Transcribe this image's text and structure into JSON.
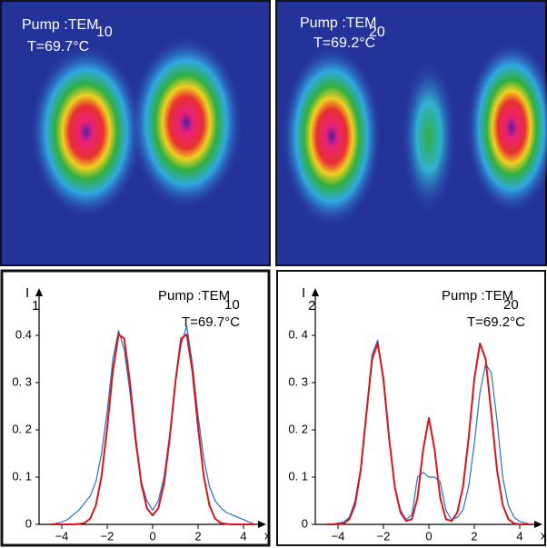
{
  "images": [
    {
      "label": "Pump :TEM",
      "subscript": "10",
      "temperature": "T=69.7°C"
    },
    {
      "label": "Pump :TEM",
      "subscript": "20",
      "temperature": "T=69.2°C"
    }
  ],
  "chart_data": [
    {
      "type": "line",
      "y_label": "I",
      "y_label_subscript": "1",
      "x_label": "x",
      "annotation": "Pump :TEM",
      "annotation_subscript": "10",
      "annotation_temperature": "T=69.7°C",
      "x": [
        -4.5,
        -4.25,
        -4,
        -3.75,
        -3.5,
        -3.25,
        -3,
        -2.75,
        -2.5,
        -2.25,
        -2,
        -1.75,
        -1.5,
        -1.25,
        -1,
        -0.75,
        -0.5,
        -0.25,
        0,
        0.25,
        0.5,
        0.75,
        1,
        1.25,
        1.5,
        1.75,
        2,
        2.25,
        2.5,
        2.75,
        3,
        3.25,
        3.5,
        3.75,
        4,
        4.25,
        4.5
      ],
      "xlim": [
        -5,
        5
      ],
      "ylim": [
        0,
        0.5
      ],
      "xticks": [
        {
          "value": -4,
          "label": "−4"
        },
        {
          "value": -2,
          "label": "−2"
        },
        0,
        2,
        4
      ],
      "yticks": [
        0,
        {
          "value": 0.1,
          "label": "0. 1"
        },
        {
          "value": 0.2,
          "label": "0. 2"
        },
        {
          "value": 0.3,
          "label": "0. 3"
        },
        0.4
      ],
      "series": [
        {
          "color": "#2a6fc0",
          "values": [
            0,
            0.002,
            0.005,
            0.01,
            0.02,
            0.03,
            0.045,
            0.06,
            0.09,
            0.15,
            0.24,
            0.35,
            0.41,
            0.37,
            0.28,
            0.17,
            0.09,
            0.05,
            0.03,
            0.05,
            0.1,
            0.19,
            0.3,
            0.38,
            0.42,
            0.34,
            0.23,
            0.14,
            0.08,
            0.05,
            0.035,
            0.025,
            0.02,
            0.015,
            0.01,
            0.005,
            0
          ]
        },
        {
          "color": "#d8141c",
          "values": [
            0,
            0,
            0,
            0,
            0,
            0.001,
            0.003,
            0.012,
            0.04,
            0.102,
            0.205,
            0.324,
            0.402,
            0.393,
            0.301,
            0.182,
            0.086,
            0.034,
            0.019,
            0.034,
            0.086,
            0.182,
            0.301,
            0.393,
            0.402,
            0.324,
            0.205,
            0.102,
            0.04,
            0.012,
            0.003,
            0.001,
            0,
            0,
            0,
            0,
            0
          ]
        }
      ]
    },
    {
      "type": "line",
      "y_label": "I",
      "y_label_subscript": "2",
      "x_label": "x",
      "annotation": "Pump :TEM",
      "annotation_subscript": "20",
      "annotation_temperature": "T=69.2°C",
      "x": [
        -4.5,
        -4.25,
        -4,
        -3.75,
        -3.5,
        -3.25,
        -3,
        -2.75,
        -2.5,
        -2.25,
        -2,
        -1.75,
        -1.5,
        -1.25,
        -1,
        -0.75,
        -0.5,
        -0.25,
        0,
        0.25,
        0.5,
        0.75,
        1,
        1.25,
        1.5,
        1.75,
        2,
        2.25,
        2.5,
        2.75,
        3,
        3.25,
        3.5,
        3.75,
        4,
        4.25,
        4.5
      ],
      "xlim": [
        -5,
        5
      ],
      "ylim": [
        0,
        0.5
      ],
      "xticks": [
        {
          "value": -4,
          "label": "−4"
        },
        {
          "value": -2,
          "label": "−2"
        },
        0,
        2,
        4
      ],
      "yticks": [
        0,
        {
          "value": 0.1,
          "label": "0. 1"
        },
        {
          "value": 0.2,
          "label": "0. 2"
        },
        {
          "value": 0.3,
          "label": "0. 3"
        },
        {
          "value": 0.4,
          "label": "0. 4"
        }
      ],
      "series": [
        {
          "color": "#2a6fc0",
          "values": [
            0,
            0,
            0.003,
            0.005,
            0.015,
            0.05,
            0.12,
            0.24,
            0.36,
            0.39,
            0.3,
            0.18,
            0.08,
            0.03,
            0.01,
            0.02,
            0.1,
            0.11,
            0.1,
            0.1,
            0.09,
            0.03,
            0.01,
            0.015,
            0.03,
            0.08,
            0.17,
            0.28,
            0.34,
            0.32,
            0.22,
            0.1,
            0.04,
            0.015,
            0.006,
            0.003,
            0
          ]
        },
        {
          "color": "#d8141c",
          "values": [
            0,
            0,
            0,
            0.002,
            0.011,
            0.041,
            0.115,
            0.234,
            0.349,
            0.383,
            0.308,
            0.182,
            0.079,
            0.025,
            0.007,
            0.011,
            0.056,
            0.159,
            0.225,
            0.159,
            0.056,
            0.011,
            0.007,
            0.025,
            0.079,
            0.182,
            0.308,
            0.383,
            0.349,
            0.234,
            0.115,
            0.041,
            0.011,
            0.002,
            0,
            0,
            0
          ]
        }
      ]
    }
  ]
}
